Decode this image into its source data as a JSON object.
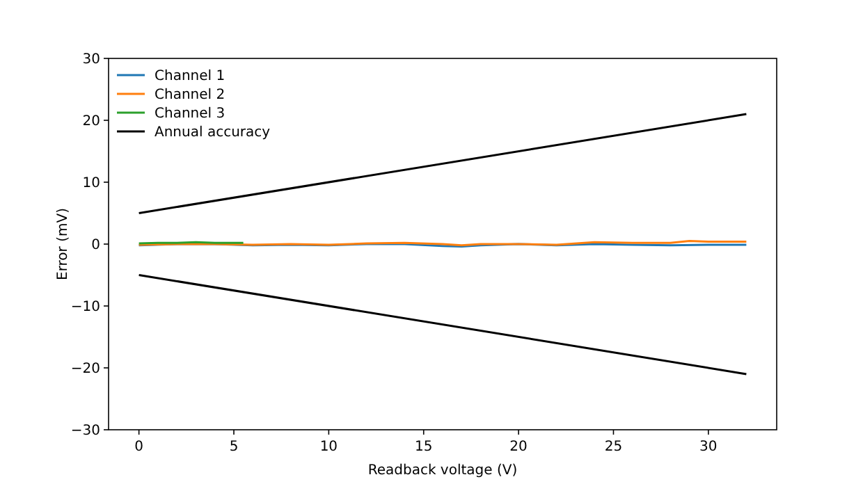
{
  "chart_data": {
    "type": "line",
    "xlabel": "Readback voltage (V)",
    "ylabel": "Error (mV)",
    "xlim": [
      -1.6,
      33.6
    ],
    "ylim": [
      -30,
      30
    ],
    "xticks": [
      0,
      5,
      10,
      15,
      20,
      25,
      30
    ],
    "yticks": [
      {
        "value": -30,
        "label": "−30"
      },
      {
        "value": -20,
        "label": "−20"
      },
      {
        "value": -10,
        "label": "−10"
      },
      0,
      10,
      20,
      30
    ],
    "legend": "top left",
    "grid": false,
    "series": [
      {
        "name": "Channel 1",
        "color": "#1f77b4",
        "x": [
          0,
          2,
          4,
          6,
          8,
          10,
          12,
          14,
          16,
          17,
          18,
          20,
          22,
          24,
          26,
          28,
          30,
          32
        ],
        "values": [
          -0.2,
          0,
          0,
          -0.2,
          -0.1,
          -0.2,
          0,
          0,
          -0.3,
          -0.4,
          -0.2,
          0,
          -0.2,
          0,
          -0.1,
          -0.2,
          -0.1,
          -0.1
        ]
      },
      {
        "name": "Channel 2",
        "color": "#ff7f0e",
        "x": [
          0,
          2,
          4,
          6,
          8,
          10,
          12,
          14,
          16,
          17,
          18,
          20,
          22,
          24,
          26,
          28,
          29,
          30,
          32
        ],
        "values": [
          -0.1,
          0,
          0,
          -0.1,
          0,
          -0.1,
          0.1,
          0.2,
          0,
          -0.2,
          0,
          0,
          -0.1,
          0.3,
          0.2,
          0.2,
          0.5,
          0.4,
          0.4
        ]
      },
      {
        "name": "Channel 3",
        "color": "#2ca02c",
        "x": [
          0,
          1,
          2,
          3,
          4,
          5,
          5.5
        ],
        "values": [
          0.1,
          0.2,
          0.2,
          0.3,
          0.2,
          0.2,
          0.2
        ]
      },
      {
        "name": "Annual accuracy",
        "color": "#000000",
        "x": [
          0,
          32
        ],
        "values": [
          5,
          21
        ]
      },
      {
        "color": "#000000",
        "x": [
          0,
          32
        ],
        "values": [
          -5,
          -21
        ]
      }
    ]
  }
}
